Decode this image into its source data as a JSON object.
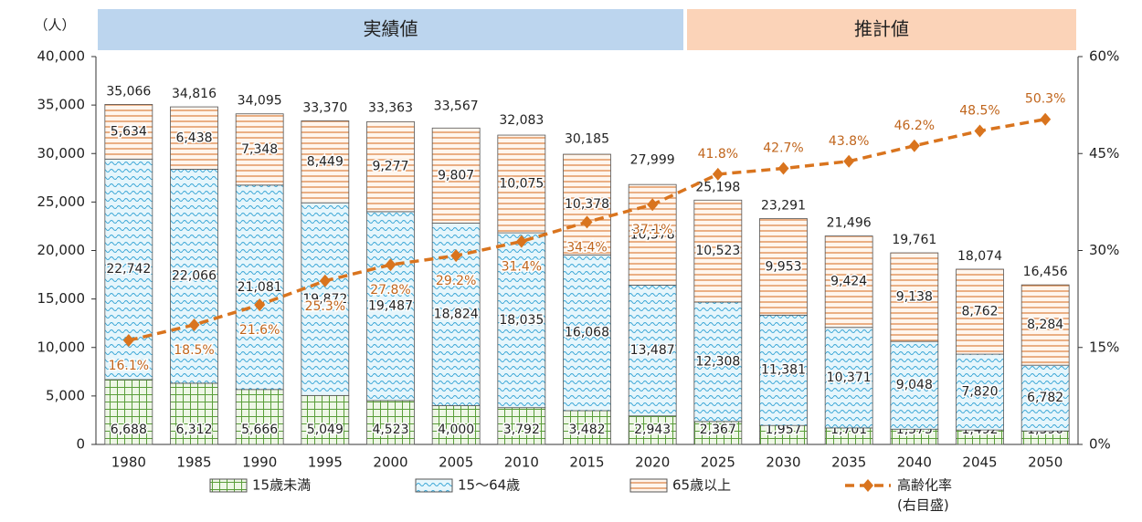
{
  "chart_data": {
    "type": "bar",
    "stacked": true,
    "y_unit": "（人）",
    "periods": [
      {
        "label": "実績値",
        "start": "1980",
        "end": "2020",
        "color": "#bcd5ee"
      },
      {
        "label": "推計値",
        "start": "2025",
        "end": "2050",
        "color": "#fbd3b8"
      }
    ],
    "categories": [
      "1980",
      "1985",
      "1990",
      "1995",
      "2000",
      "2005",
      "2010",
      "2015",
      "2020",
      "2025",
      "2030",
      "2035",
      "2040",
      "2045",
      "2050"
    ],
    "series": [
      {
        "name": "15歳未満",
        "color": "#5a9e3a",
        "values": [
          6688,
          6312,
          5666,
          5049,
          4523,
          4000,
          3792,
          3482,
          2943,
          2367,
          1957,
          1701,
          1575,
          1492,
          1390
        ],
        "value_labels": [
          "6,688",
          "6,312",
          "5,666",
          "5,049",
          "4,523",
          "4,000",
          "3,792",
          "3,482",
          "2,943",
          "2,367",
          "1,957",
          "1,701",
          "1,575",
          "1,492",
          "1,390"
        ]
      },
      {
        "name": "15～64歳",
        "color": "#3aa6d6",
        "values": [
          22742,
          22066,
          21081,
          19872,
          19487,
          18824,
          18035,
          16068,
          13487,
          12308,
          11381,
          10371,
          9048,
          7820,
          6782
        ],
        "value_labels": [
          "22,742",
          "22,066",
          "21,081",
          "19,872",
          "19,487",
          "18,824",
          "18,035",
          "16,068",
          "13,487",
          "12,308",
          "11,381",
          "10,371",
          "9,048",
          "7,820",
          "6,782"
        ]
      },
      {
        "name": "65歳以上",
        "color": "#e0894a",
        "values": [
          5634,
          6438,
          7348,
          8449,
          9277,
          9807,
          10075,
          10378,
          10378,
          10523,
          9953,
          9424,
          9138,
          8762,
          8284
        ],
        "value_labels": [
          "5,634",
          "6,438",
          "7,348",
          "8,449",
          "9,277",
          "9,807",
          "10,075",
          "10,378",
          "10,378",
          "10,523",
          "9,953",
          "9,424",
          "9,138",
          "8,762",
          "8,284"
        ]
      }
    ],
    "totals": {
      "values": [
        35066,
        34816,
        34095,
        33370,
        33363,
        33567,
        32083,
        30185,
        27999,
        25198,
        23291,
        21496,
        19761,
        18074,
        16456
      ],
      "value_labels": [
        "35,066",
        "34,816",
        "34,095",
        "33,370",
        "33,363",
        "33,567",
        "32,083",
        "30,185",
        "27,999",
        "25,198",
        "23,291",
        "21,496",
        "19,761",
        "18,074",
        "16,456"
      ]
    },
    "line": {
      "name": "高齢化率",
      "note": "(右目盛)",
      "axis": "y2",
      "color": "#d9741e",
      "values": [
        16.1,
        18.5,
        21.6,
        25.3,
        27.8,
        29.2,
        31.4,
        34.4,
        37.1,
        41.8,
        42.7,
        43.8,
        46.2,
        48.5,
        50.3
      ],
      "value_labels": [
        "16.1%",
        "18.5%",
        "21.6%",
        "25.3%",
        "27.8%",
        "29.2%",
        "31.4%",
        "34.4%",
        "37.1%",
        "41.8%",
        "42.7%",
        "43.8%",
        "46.2%",
        "48.5%",
        "50.3%"
      ]
    },
    "ylim": [
      0,
      40000
    ],
    "yticks": [
      0,
      {
        "value": 5000,
        "label": "5,000"
      },
      {
        "value": 10000,
        "label": "10,000"
      },
      {
        "value": 15000,
        "label": "15,000"
      },
      {
        "value": 20000,
        "label": "20,000"
      },
      {
        "value": 25000,
        "label": "25,000"
      },
      {
        "value": 30000,
        "label": "30,000"
      },
      {
        "value": 35000,
        "label": "35,000"
      },
      {
        "value": 40000,
        "label": "40,000"
      }
    ],
    "y2lim": [
      0,
      60
    ],
    "y2ticks": [
      {
        "value": 0,
        "label": "0%"
      },
      {
        "value": 15,
        "label": "15%"
      },
      {
        "value": 30,
        "label": "30%"
      },
      {
        "value": 45,
        "label": "45%"
      },
      {
        "value": 60,
        "label": "60%"
      }
    ]
  }
}
